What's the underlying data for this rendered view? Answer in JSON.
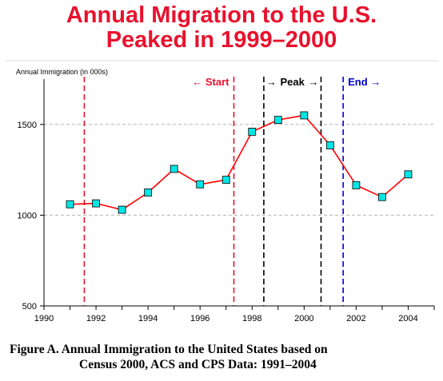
{
  "chart_data": {
    "type": "line",
    "title": [
      "Annual Migration to the U.S.",
      "Peaked in 1999–2000"
    ],
    "ylabel": "Annual Immigration (in 000s)",
    "xlabel": "",
    "xlim": [
      1990,
      2005
    ],
    "ylim": [
      500,
      1750
    ],
    "x_ticks": [
      1990,
      1992,
      1994,
      1996,
      1998,
      2000,
      2002,
      2004
    ],
    "y_ticks": [
      500,
      1000,
      1500
    ],
    "y_gridlines": [
      1000,
      1500
    ],
    "grid": "horizontal dashed at 1000 and 1500",
    "series": [
      {
        "color": "#ff0000",
        "marker_color": "#00e5e5",
        "x": [
          1991,
          1992,
          1993,
          1994,
          1995,
          1996,
          1997,
          1998,
          1999,
          2000,
          2001,
          2002,
          2003,
          2004
        ],
        "y": [
          1060,
          1065,
          1030,
          1125,
          1255,
          1170,
          1195,
          1460,
          1525,
          1550,
          1385,
          1165,
          1100,
          1225
        ]
      }
    ],
    "annotations": [
      {
        "text": "← Start",
        "x_line": 1991.55,
        "color": "#e8112d",
        "style": "dashed",
        "label_side": "right-aligned-left-of-line2",
        "x_line2": 1997.3
      },
      {
        "text": "→ Peak →",
        "x_line": 1998.45,
        "x_line2": 2000.65,
        "color": "#000000",
        "style": "dashed"
      },
      {
        "text": "End →",
        "x_line": 2001.5,
        "color": "#0000cc",
        "style": "dashed"
      }
    ],
    "labels": {
      "start": "← Start",
      "peak_left": "→",
      "peak": "Peak",
      "peak_right": "→",
      "end": "End →"
    }
  },
  "caption": {
    "line1": "Figure A.  Annual Immigration to the United States based on",
    "line2": "Census 2000, ACS and CPS Data:  1991–2004"
  }
}
